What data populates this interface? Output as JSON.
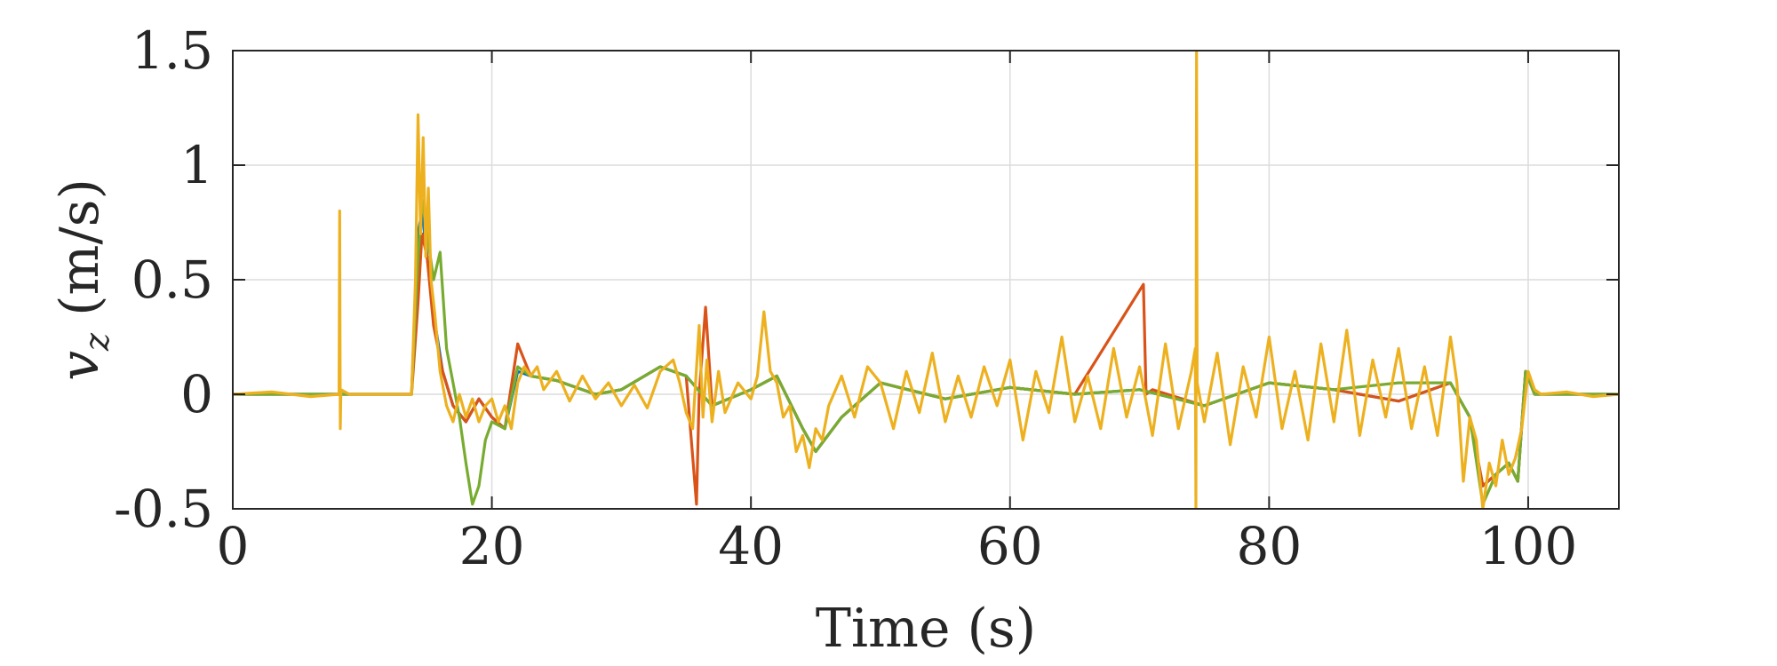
{
  "chart_data": {
    "type": "line",
    "xlabel": "Time (s)",
    "ylabel": "v_z (m/s)",
    "ylabel_parts": {
      "var": "v",
      "sub": "z",
      "unit": " (m/s)"
    },
    "xlim": [
      0,
      107
    ],
    "ylim": [
      -0.5,
      1.5
    ],
    "xticks": [
      0,
      20,
      40,
      60,
      80,
      100
    ],
    "xtick_labels": [
      "0",
      "20",
      "40",
      "60",
      "80",
      "100"
    ],
    "yticks": [
      -0.5,
      0,
      0.5,
      1,
      1.5
    ],
    "ytick_labels": [
      "-0.5",
      "0",
      "0.5",
      "1",
      "1.5"
    ],
    "grid": true,
    "series": [
      {
        "color": "#0072BD",
        "x": [
          0,
          8,
          13.8,
          14.3,
          14.6,
          15.0,
          15.5,
          16.2,
          17.0,
          18.0,
          19.0,
          20.0,
          21.0,
          22.0,
          23.0,
          25.0,
          28.0,
          30.0,
          33.0,
          35.0,
          37.0,
          40.0,
          42.0,
          44.0,
          45.0,
          47.0,
          50.0,
          55.0,
          60.0,
          65.0,
          70.0,
          75.0,
          80.0,
          85.0,
          90.0,
          94.0,
          95.5,
          96.5,
          97.5,
          98.5,
          99.2,
          99.8,
          100.5,
          107
        ],
        "y": [
          0,
          0,
          0,
          0.7,
          0.8,
          0.6,
          0.35,
          0.1,
          -0.05,
          -0.12,
          -0.02,
          -0.1,
          -0.15,
          0.1,
          0.08,
          0.06,
          0.0,
          0.02,
          0.12,
          0.08,
          -0.05,
          0.02,
          0.08,
          -0.15,
          -0.25,
          -0.1,
          0.05,
          -0.02,
          0.03,
          0.0,
          0.02,
          -0.05,
          0.05,
          0.02,
          -0.03,
          0.05,
          -0.1,
          -0.4,
          -0.35,
          -0.3,
          -0.38,
          0.1,
          0,
          0
        ]
      },
      {
        "color": "#D95319",
        "x": [
          0,
          8,
          13.8,
          14.3,
          14.6,
          15.0,
          15.5,
          16.2,
          17.0,
          18.0,
          19.0,
          20.0,
          21.0,
          22.0,
          23.0,
          25.0,
          28.0,
          30.0,
          33.0,
          35.0,
          35.8,
          36.0,
          36.5,
          37.0,
          40.0,
          42.0,
          44.0,
          45.0,
          47.0,
          50.0,
          55.0,
          60.0,
          65.0,
          70.3,
          70.5,
          71.0,
          75.0,
          80.0,
          85.0,
          90.0,
          94.0,
          95.5,
          96.5,
          97.5,
          98.5,
          99.2,
          99.8,
          100.5,
          107
        ],
        "y": [
          0,
          0,
          0,
          0.4,
          0.7,
          0.6,
          0.3,
          0.1,
          -0.05,
          -0.12,
          -0.02,
          -0.1,
          -0.15,
          0.22,
          0.08,
          0.06,
          0.0,
          0.02,
          0.12,
          0.08,
          -0.48,
          0.0,
          0.38,
          -0.05,
          0.02,
          0.08,
          -0.15,
          -0.25,
          -0.1,
          0.05,
          -0.02,
          0.03,
          0.0,
          0.48,
          0.0,
          0.02,
          -0.05,
          0.05,
          0.02,
          -0.03,
          0.05,
          -0.1,
          -0.4,
          -0.35,
          -0.3,
          -0.38,
          0.1,
          0,
          0
        ]
      },
      {
        "color": "#77AC30",
        "x": [
          0,
          8,
          13.8,
          14.3,
          14.6,
          15.0,
          15.5,
          16.0,
          16.5,
          17.0,
          17.5,
          18.0,
          18.5,
          19.0,
          19.5,
          20.0,
          21.0,
          22.0,
          23.0,
          25.0,
          28.0,
          30.0,
          33.0,
          35.0,
          37.0,
          40.0,
          42.0,
          44.0,
          45.0,
          47.0,
          50.0,
          55.0,
          60.0,
          65.0,
          70.0,
          75.0,
          80.0,
          85.0,
          90.0,
          94.0,
          95.5,
          96.5,
          97.5,
          98.5,
          99.2,
          99.8,
          100.5,
          107
        ],
        "y": [
          0,
          0,
          0,
          0.6,
          0.85,
          0.7,
          0.5,
          0.62,
          0.2,
          0.05,
          -0.1,
          -0.3,
          -0.48,
          -0.4,
          -0.2,
          -0.12,
          -0.15,
          0.12,
          0.08,
          0.06,
          0.0,
          0.02,
          0.12,
          0.08,
          -0.05,
          0.02,
          0.08,
          -0.15,
          -0.25,
          -0.1,
          0.05,
          -0.02,
          0.03,
          0.0,
          0.02,
          -0.05,
          0.05,
          0.02,
          0.05,
          0.05,
          -0.1,
          -0.48,
          -0.35,
          -0.3,
          -0.38,
          0.1,
          0,
          0
        ]
      },
      {
        "color": "#EDB120",
        "x": [
          0,
          3,
          6,
          8.2,
          8.25,
          8.3,
          8.35,
          9,
          12,
          13.8,
          14.1,
          14.3,
          14.5,
          14.7,
          14.9,
          15.1,
          15.3,
          15.6,
          16.0,
          16.5,
          17.0,
          17.5,
          18.0,
          18.5,
          19.0,
          19.5,
          20.0,
          20.5,
          21.0,
          21.5,
          22.0,
          22.5,
          23.0,
          23.5,
          24.0,
          25.0,
          26.0,
          27.0,
          28.0,
          29.0,
          30.0,
          31.0,
          32.0,
          33.0,
          34.0,
          34.5,
          35.0,
          35.5,
          36.0,
          36.3,
          36.6,
          37.0,
          37.5,
          38.0,
          39.0,
          40.0,
          40.5,
          41.0,
          41.5,
          42.0,
          42.5,
          43.0,
          43.5,
          44.0,
          44.5,
          45.0,
          45.5,
          46.0,
          47.0,
          48.0,
          49.0,
          50.0,
          51.0,
          52.0,
          53.0,
          54.0,
          55.0,
          56.0,
          57.0,
          58.0,
          59.0,
          60.0,
          61.0,
          62.0,
          63.0,
          64.0,
          65.0,
          66.0,
          67.0,
          68.0,
          69.0,
          70.0,
          71.0,
          72.0,
          73.0,
          74.0,
          74.3,
          74.35,
          74.4,
          74.45,
          75.0,
          76.0,
          77.0,
          78.0,
          79.0,
          80.0,
          81.0,
          82.0,
          83.0,
          84.0,
          85.0,
          86.0,
          87.0,
          88.0,
          89.0,
          90.0,
          91.0,
          92.0,
          93.0,
          94.0,
          94.5,
          95.0,
          95.5,
          96.0,
          96.5,
          97.0,
          97.5,
          98.0,
          98.5,
          99.0,
          99.5,
          100.0,
          100.5,
          101.0,
          103.0,
          105.0,
          107.0
        ],
        "y": [
          0,
          0.01,
          -0.01,
          0,
          0.8,
          -0.15,
          0.02,
          0,
          0,
          0,
          0.5,
          1.22,
          0.7,
          1.12,
          0.6,
          0.9,
          0.5,
          0.35,
          0.1,
          -0.05,
          -0.12,
          0.0,
          -0.1,
          -0.02,
          -0.12,
          -0.05,
          -0.02,
          -0.12,
          -0.05,
          -0.15,
          0.05,
          0.12,
          0.08,
          0.12,
          0.02,
          0.1,
          -0.03,
          0.08,
          -0.02,
          0.05,
          -0.05,
          0.04,
          -0.06,
          0.1,
          0.15,
          0.05,
          -0.08,
          -0.15,
          0.3,
          -0.1,
          0.15,
          -0.12,
          0.1,
          -0.08,
          0.05,
          -0.02,
          0.08,
          0.36,
          0.1,
          0.05,
          -0.1,
          -0.05,
          -0.25,
          -0.18,
          -0.32,
          -0.15,
          -0.2,
          -0.05,
          0.08,
          -0.1,
          0.12,
          0.05,
          -0.15,
          0.1,
          -0.08,
          0.18,
          -0.12,
          0.08,
          -0.1,
          0.12,
          -0.05,
          0.15,
          -0.2,
          0.1,
          -0.08,
          0.25,
          -0.12,
          0.08,
          -0.15,
          0.2,
          -0.1,
          0.12,
          -0.18,
          0.22,
          -0.15,
          0.1,
          0.2,
          -0.5,
          1.5,
          0.05,
          -0.12,
          0.18,
          -0.22,
          0.12,
          -0.1,
          0.25,
          -0.15,
          0.1,
          -0.2,
          0.22,
          -0.12,
          0.28,
          -0.18,
          0.15,
          -0.1,
          0.2,
          -0.15,
          0.12,
          -0.18,
          0.25,
          0.05,
          -0.38,
          -0.1,
          -0.2,
          -0.5,
          -0.3,
          -0.4,
          -0.2,
          -0.35,
          -0.28,
          -0.15,
          0.1,
          0.02,
          0.0,
          0.01,
          -0.01,
          0
        ]
      }
    ]
  }
}
